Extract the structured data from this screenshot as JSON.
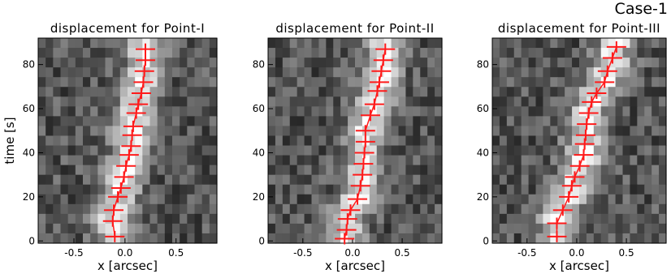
{
  "label": "Case-1",
  "chart_data": [
    {
      "type": "scatter",
      "title": "displacement for Point-I",
      "xlabel": "x [arcsec]",
      "ylabel": "time [s]",
      "color": "#ff1a1a",
      "x": [
        -0.1,
        -0.12,
        -0.11,
        -0.07,
        -0.04,
        -0.01,
        0.01,
        0.04,
        0.06,
        0.07,
        0.08,
        0.11,
        0.13,
        0.16,
        0.18,
        0.19,
        0.2,
        0.2
      ],
      "values": [
        2,
        9,
        14,
        20,
        24,
        29,
        34,
        39,
        43,
        48,
        52,
        58,
        62,
        67,
        72,
        77,
        82,
        87
      ],
      "xlim": [
        -0.85,
        0.9
      ],
      "ylim": [
        -1,
        92
      ],
      "xticks": [
        -0.5,
        {
          "value": 0,
          "label": "0.0"
        },
        0.5
      ],
      "yticks": [
        0,
        20,
        40,
        60,
        80
      ]
    },
    {
      "type": "scatter",
      "title": "displacement for Point-II",
      "xlabel": "x [arcsec]",
      "color": "#ff1a1a",
      "x": [
        -0.08,
        -0.06,
        -0.05,
        -0.02,
        0.05,
        0.08,
        0.1,
        0.11,
        0.12,
        0.13,
        0.13,
        0.18,
        0.22,
        0.25,
        0.27,
        0.29,
        0.31,
        0.33
      ],
      "values": [
        1,
        5,
        10,
        14,
        19,
        25,
        30,
        35,
        40,
        45,
        50,
        57,
        62,
        68,
        72,
        77,
        82,
        87
      ],
      "xlim": [
        -0.85,
        0.9
      ],
      "ylim": [
        -1,
        92
      ],
      "xticks": [
        -0.5,
        {
          "value": 0,
          "label": "0.0"
        },
        0.5
      ],
      "yticks": [
        0,
        20,
        40,
        60,
        80
      ]
    },
    {
      "type": "scatter",
      "title": "displacement for Point-III",
      "xlabel": "x [arcsec]",
      "color": "#ff1a1a",
      "x": [
        -0.2,
        -0.2,
        -0.14,
        -0.08,
        -0.05,
        -0.02,
        0.03,
        0.07,
        0.08,
        0.09,
        0.1,
        0.12,
        0.15,
        0.2,
        0.28,
        0.31,
        0.36,
        0.4
      ],
      "values": [
        2,
        8,
        14,
        20,
        25,
        29,
        34,
        39,
        44,
        48,
        53,
        58,
        63,
        67,
        72,
        77,
        83,
        88
      ],
      "xlim": [
        -0.85,
        0.9
      ],
      "ylim": [
        -1,
        92
      ],
      "xticks": [
        -0.5,
        {
          "value": 0,
          "label": "0.0"
        },
        0.5
      ],
      "yticks": [
        0,
        20,
        40,
        60,
        80
      ]
    }
  ]
}
